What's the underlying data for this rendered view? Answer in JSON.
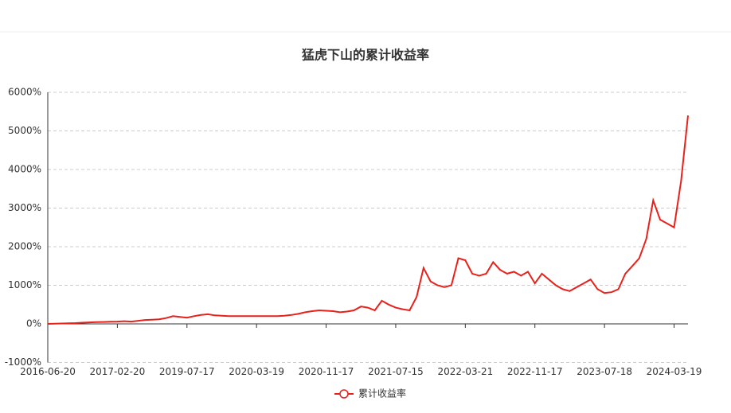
{
  "chart_data": {
    "type": "line",
    "title": "猛虎下山的累计收益率",
    "categories": [
      "2016-06-20",
      null,
      null,
      null,
      null,
      null,
      null,
      null,
      null,
      null,
      "2017-02-20",
      null,
      null,
      null,
      null,
      null,
      null,
      null,
      null,
      null,
      "2019-07-17",
      null,
      null,
      null,
      null,
      null,
      null,
      null,
      null,
      null,
      "2020-03-19",
      null,
      null,
      null,
      null,
      null,
      null,
      null,
      null,
      null,
      "2020-11-17",
      null,
      null,
      null,
      null,
      null,
      null,
      null,
      null,
      null,
      "2021-07-15",
      null,
      null,
      null,
      null,
      null,
      null,
      null,
      null,
      null,
      "2022-03-21",
      null,
      null,
      null,
      null,
      null,
      null,
      null,
      null,
      null,
      "2022-11-17",
      null,
      null,
      null,
      null,
      null,
      null,
      null,
      null,
      null,
      "2023-07-18",
      null,
      null,
      null,
      null,
      null,
      null,
      null,
      null,
      null,
      "2024-03-19",
      null,
      null
    ],
    "series": [
      {
        "name": "累计收益率",
        "color": "#e8211a",
        "values": [
          0,
          5,
          10,
          15,
          20,
          30,
          40,
          45,
          50,
          55,
          60,
          70,
          60,
          80,
          100,
          110,
          120,
          150,
          200,
          180,
          160,
          200,
          230,
          250,
          220,
          210,
          200,
          200,
          200,
          200,
          200,
          200,
          200,
          200,
          210,
          230,
          260,
          300,
          330,
          350,
          340,
          330,
          300,
          320,
          350,
          450,
          420,
          350,
          600,
          500,
          420,
          380,
          350,
          700,
          1450,
          1100,
          1000,
          950,
          1000,
          1700,
          1650,
          1300,
          1250,
          1300,
          1600,
          1400,
          1300,
          1350,
          1250,
          1350,
          1050,
          1300,
          1150,
          1000,
          900,
          850,
          950,
          1050,
          1150,
          900,
          800,
          820,
          900,
          1300,
          1500,
          1700,
          2200,
          3200,
          2700,
          2600,
          2500,
          3700,
          5400
        ]
      }
    ],
    "ylim": [
      -1000,
      6000
    ],
    "yticks": [
      {
        "value": -1000,
        "label": "-1000%"
      },
      {
        "value": 0,
        "label": "0%"
      },
      {
        "value": 1000,
        "label": "1000%"
      },
      {
        "value": 2000,
        "label": "2000%"
      },
      {
        "value": 3000,
        "label": "3000%"
      },
      {
        "value": 4000,
        "label": "4000%"
      },
      {
        "value": 5000,
        "label": "5000%"
      },
      {
        "value": 6000,
        "label": "6000%"
      }
    ],
    "grid": true,
    "legend": "bottom"
  }
}
